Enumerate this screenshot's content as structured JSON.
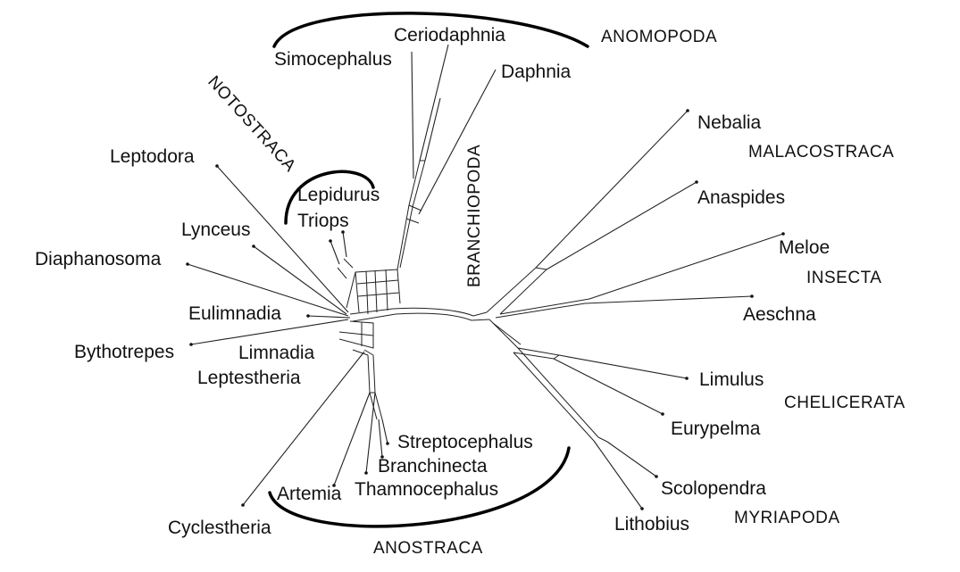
{
  "taxa": {
    "simocephalus": "Simocephalus",
    "ceriodaphnia": "Ceriodaphnia",
    "daphnia": "Daphnia",
    "leptodora": "Leptodora",
    "lepidurus": "Lepidurus",
    "triops": "Triops",
    "lynceus": "Lynceus",
    "diaphanosoma": "Diaphanosoma",
    "eulimnadia": "Eulimnadia",
    "bythotrepes": "Bythotrepes",
    "limnadia": "Limnadia",
    "leptestheria": "Leptestheria",
    "streptocephalus": "Streptocephalus",
    "branchinecta": "Branchinecta",
    "artemia": "Artemia",
    "thamnocephalus": "Thamnocephalus",
    "cyclestheria": "Cyclestheria",
    "nebalia": "Nebalia",
    "anaspides": "Anaspides",
    "meloe": "Meloe",
    "aeschna": "Aeschna",
    "limulus": "Limulus",
    "eurypelma": "Eurypelma",
    "scolopendra": "Scolopendra",
    "lithobius": "Lithobius"
  },
  "groups": {
    "anomopoda": "ANOMOPODA",
    "notostraca": "NOTOSTRACA",
    "branchiopoda": "BRANCHIOPODA",
    "malacostraca": "MALACOSTRACA",
    "insecta": "INSECTA",
    "chelicerata": "CHELICERATA",
    "anostraca": "ANOSTRACA",
    "myriapoda": "MYRIAPODA"
  }
}
